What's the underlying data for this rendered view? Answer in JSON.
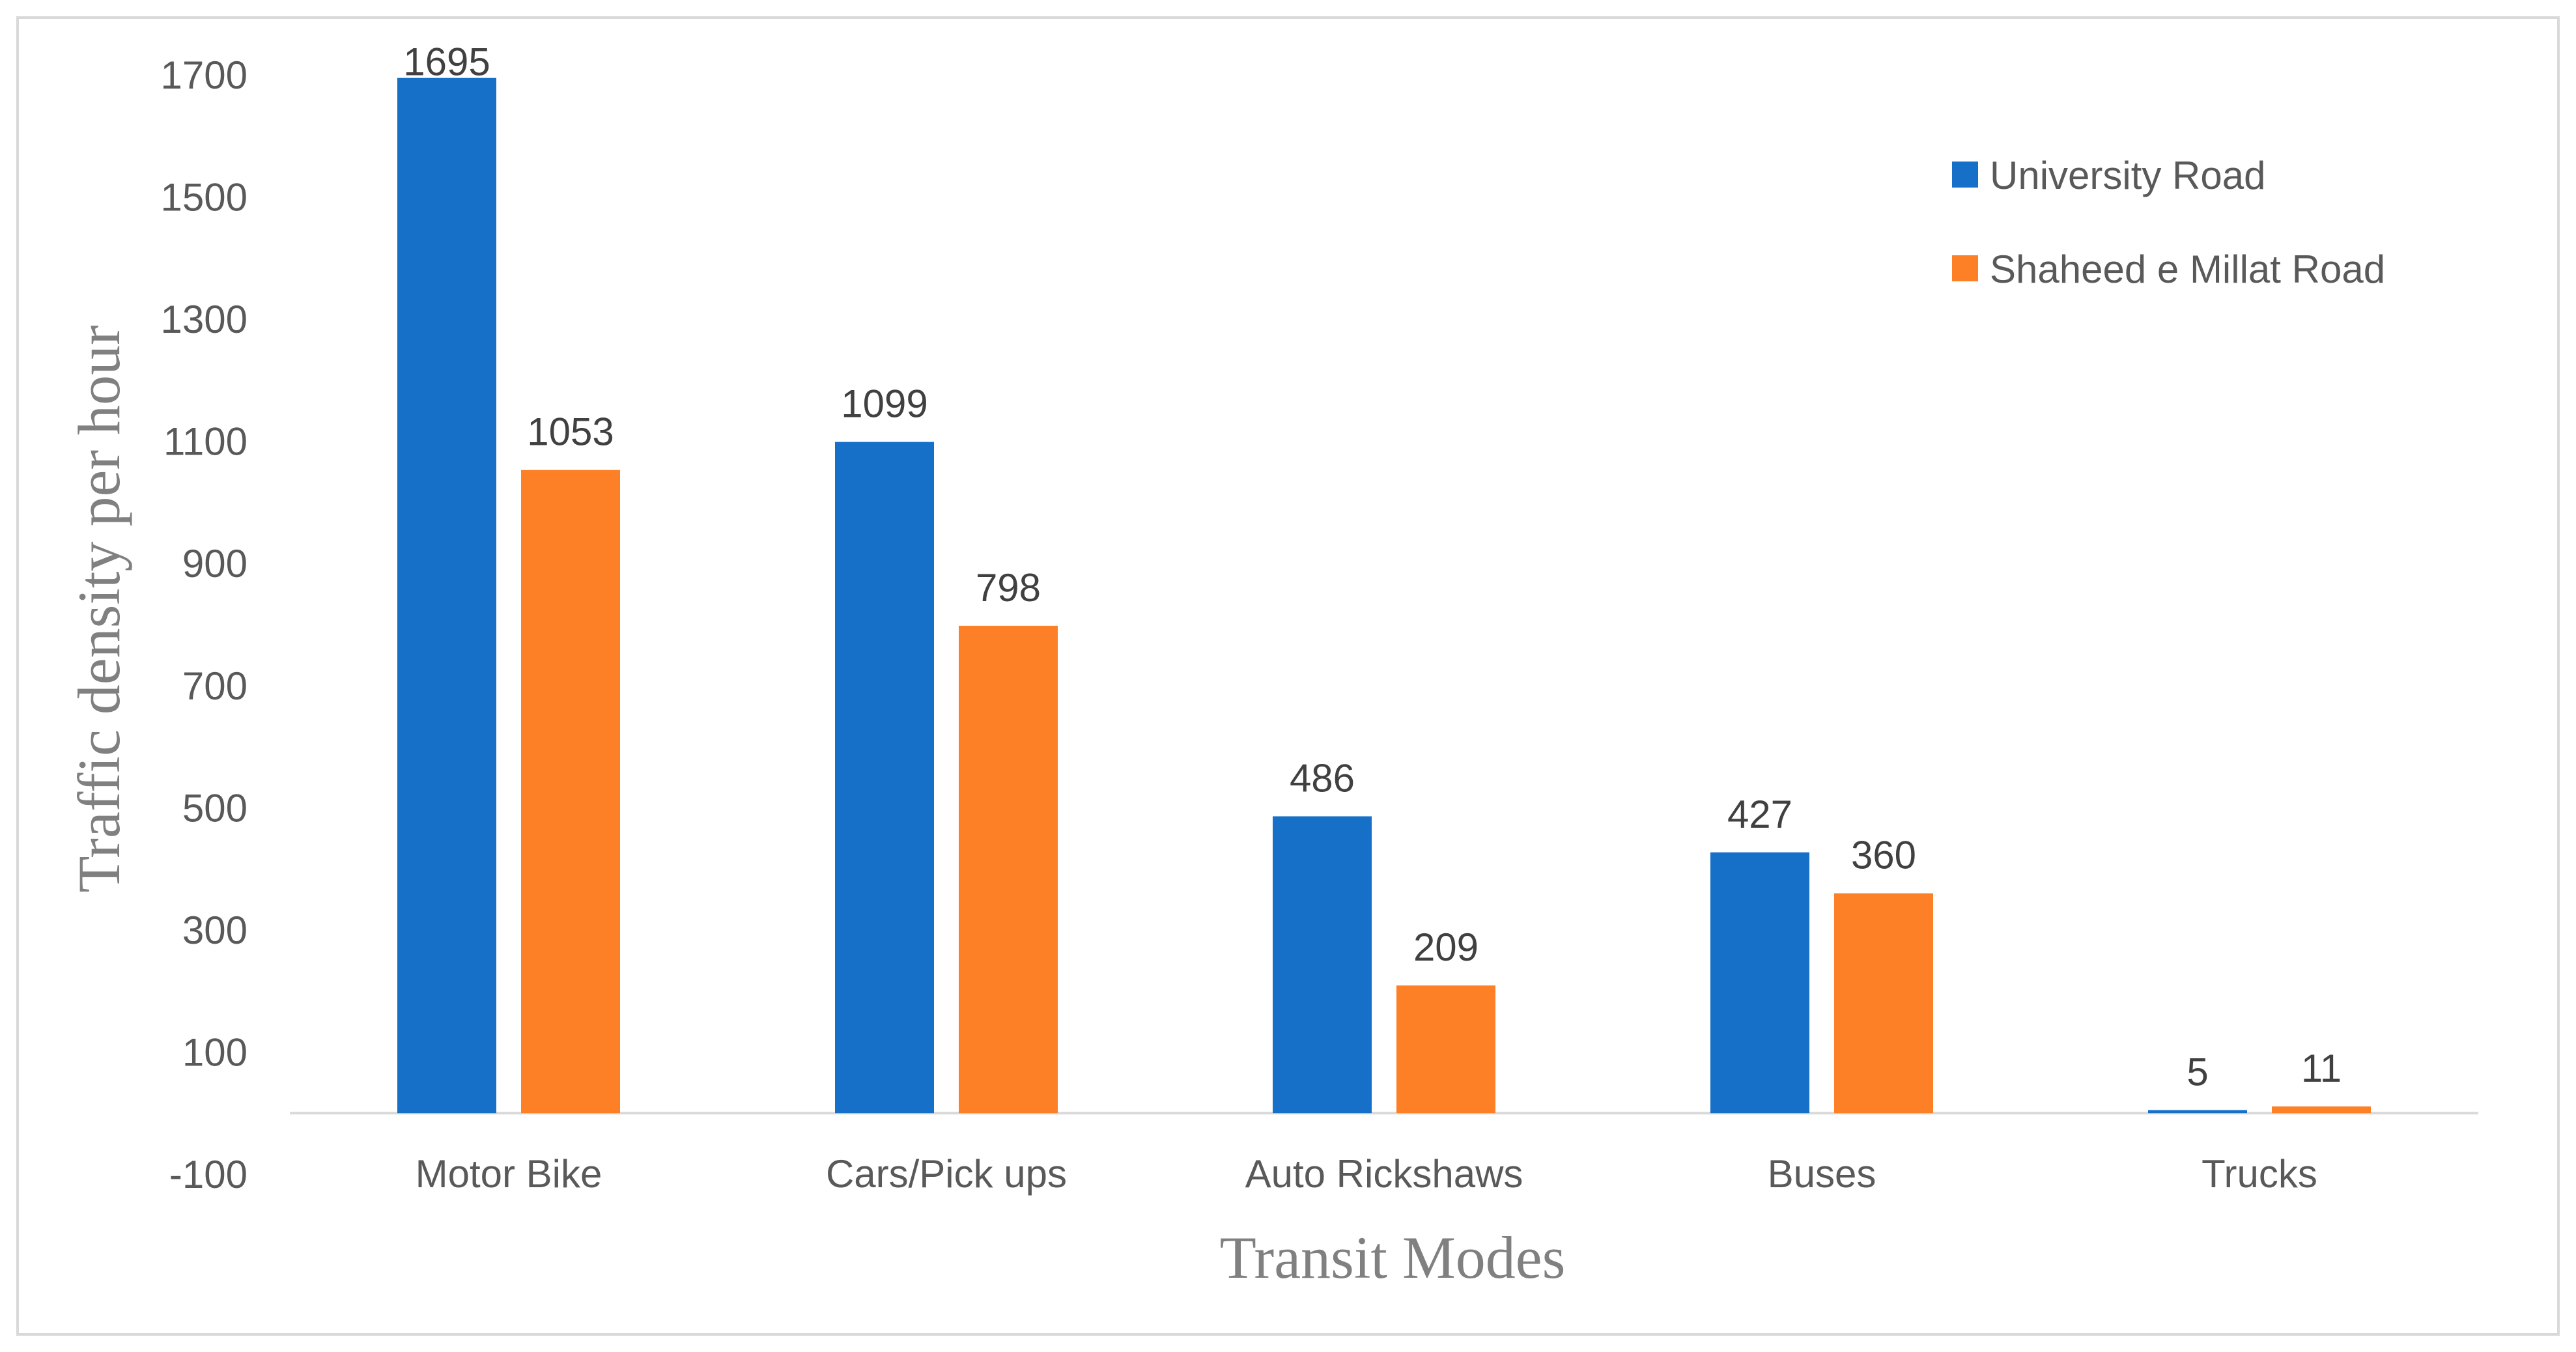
{
  "chart_data": {
    "type": "bar",
    "title": "",
    "xlabel": "Transit Modes",
    "ylabel": "Traffic density per hour",
    "categories": [
      "Motor Bike",
      "Cars/Pick ups",
      "Auto Rickshaws",
      "Buses",
      "Trucks"
    ],
    "series": [
      {
        "name": "University Road",
        "color": "#1670c8",
        "values": [
          1695,
          1099,
          486,
          427,
          5
        ]
      },
      {
        "name": "Shaheed e Millat Road",
        "color": "#fd7f26",
        "values": [
          1053,
          798,
          209,
          360,
          11
        ]
      }
    ],
    "ylim": [
      -100,
      1700
    ],
    "yticks": [
      -100,
      100,
      300,
      500,
      700,
      900,
      1100,
      1300,
      1500,
      1700
    ],
    "grid": false,
    "legend": "top-right"
  }
}
